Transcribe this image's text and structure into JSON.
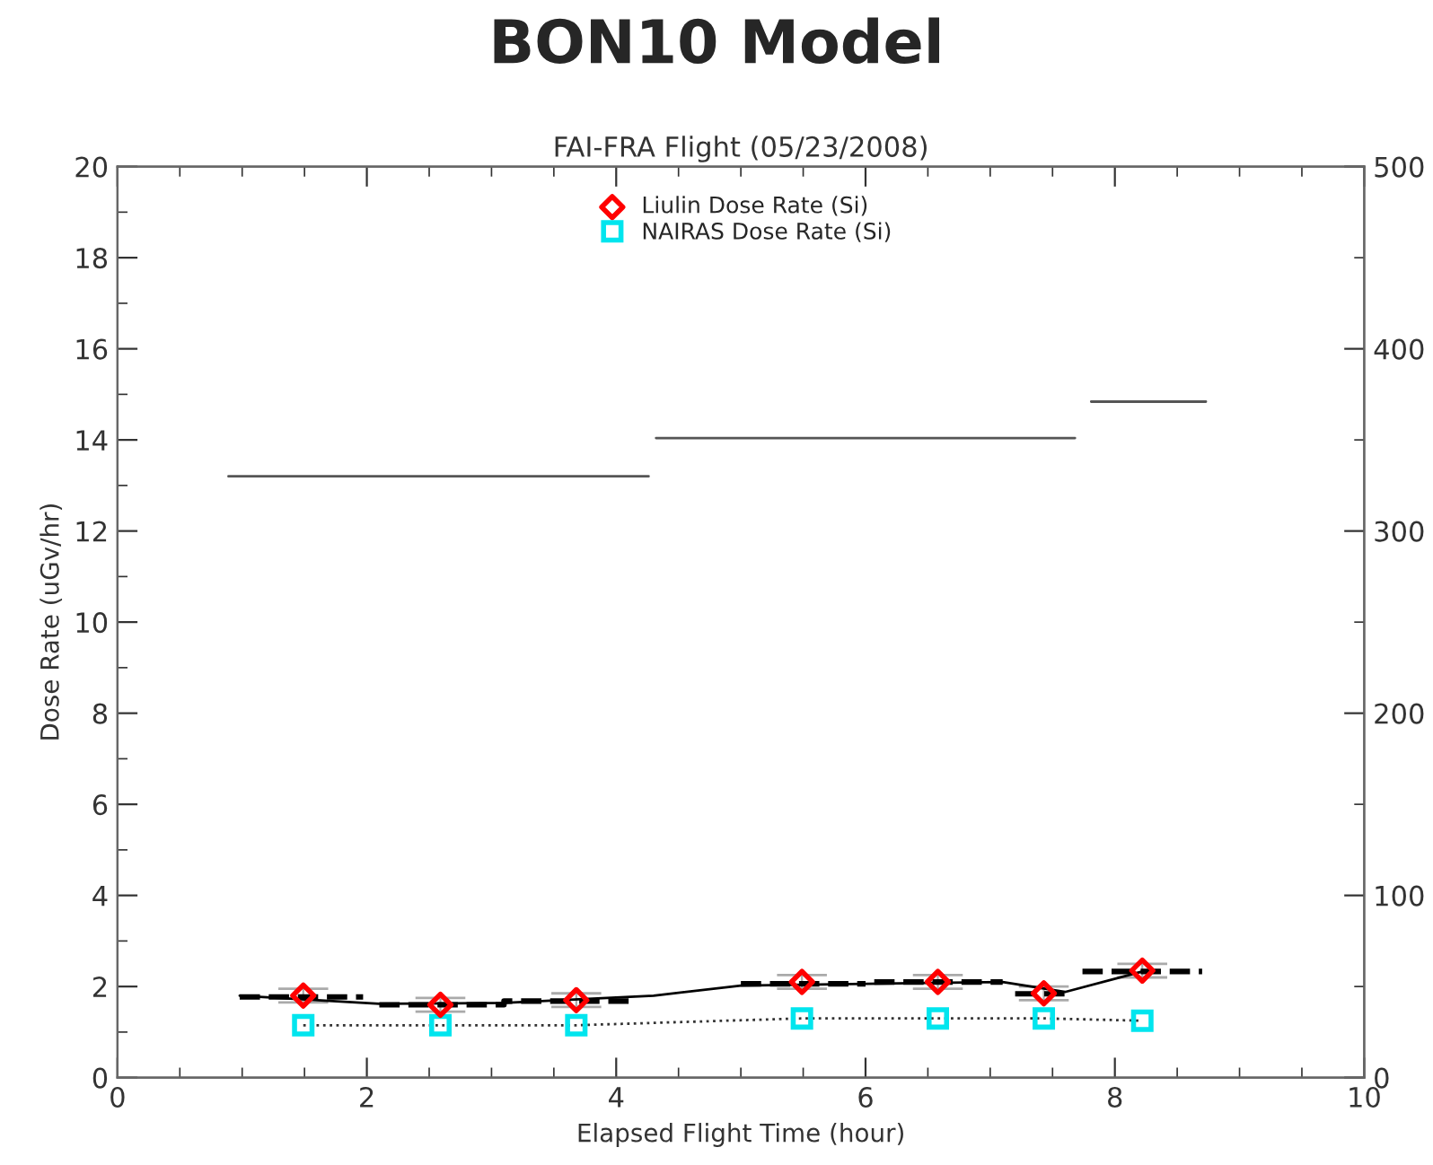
{
  "chart_data": {
    "type": "line",
    "title": "BON10 Model",
    "subtitle": "FAI-FRA Flight (05/23/2008)",
    "xlabel": "Elapsed Flight Time (hour)",
    "ylabel": "Dose Rate (uGv/hr)",
    "xlim": [
      0,
      10
    ],
    "xticks": [
      0,
      2,
      4,
      6,
      8,
      10
    ],
    "ylim": [
      0,
      20
    ],
    "yticks": [
      0,
      2,
      4,
      6,
      8,
      10,
      12,
      14,
      16,
      18,
      20
    ],
    "y2lim": [
      0,
      500
    ],
    "y2ticks": [
      0,
      100,
      200,
      300,
      400,
      500
    ],
    "grid": false,
    "legend": "top",
    "series": [
      {
        "name": "Liulin Dose Rate (Si)",
        "type": "scatter",
        "marker": "diamond",
        "color": "#ff0000",
        "x": [
          1.49,
          2.59,
          3.68,
          5.49,
          6.58,
          7.43,
          8.22
        ],
        "values": [
          1.8,
          1.6,
          1.7,
          2.1,
          2.1,
          1.85,
          2.35
        ],
        "errors": [
          0.15,
          0.15,
          0.15,
          0.15,
          0.15,
          0.15,
          0.15
        ]
      },
      {
        "name": "NAIRAS Dose Rate (Si)",
        "marker": "square",
        "line_style": "dotted",
        "color": "#00e5ee",
        "x": [
          1.49,
          2.59,
          3.68,
          5.49,
          6.58,
          7.43,
          8.22
        ],
        "values": [
          1.15,
          1.15,
          1.15,
          1.3,
          1.3,
          1.3,
          1.25
        ]
      },
      {
        "marker": "none",
        "line_style": "solid",
        "color": "#000000",
        "x": [
          0.98,
          2.1,
          3.1,
          4.3,
          5.0,
          7.1,
          7.6,
          8.22
        ],
        "values": [
          1.8,
          1.62,
          1.64,
          1.8,
          2.02,
          2.1,
          1.88,
          2.33
        ]
      },
      {
        "marker": "none",
        "line_style": "dashed",
        "color": "#000000",
        "x": [
          0.98,
          1.97,
          2.03,
          2.1,
          3.1,
          3.1,
          4.16,
          4.6,
          5.0,
          6.0,
          6.03,
          6.07,
          7.1,
          7.15,
          7.2,
          7.6,
          7.67,
          7.74,
          8.7
        ],
        "values": [
          1.77,
          1.77,
          null,
          1.6,
          1.6,
          1.68,
          1.68,
          null,
          2.06,
          2.06,
          null,
          2.1,
          2.1,
          null,
          1.84,
          1.84,
          null,
          2.33,
          2.33
        ]
      },
      {
        "axis": "y2",
        "marker": "none",
        "line_style": "solid",
        "color": "#555555",
        "x": [
          0.89,
          4.26,
          4.29,
          4.32,
          7.68,
          7.75,
          7.81,
          8.73
        ],
        "values": [
          330,
          330,
          null,
          351,
          351,
          null,
          371,
          371
        ]
      }
    ]
  }
}
